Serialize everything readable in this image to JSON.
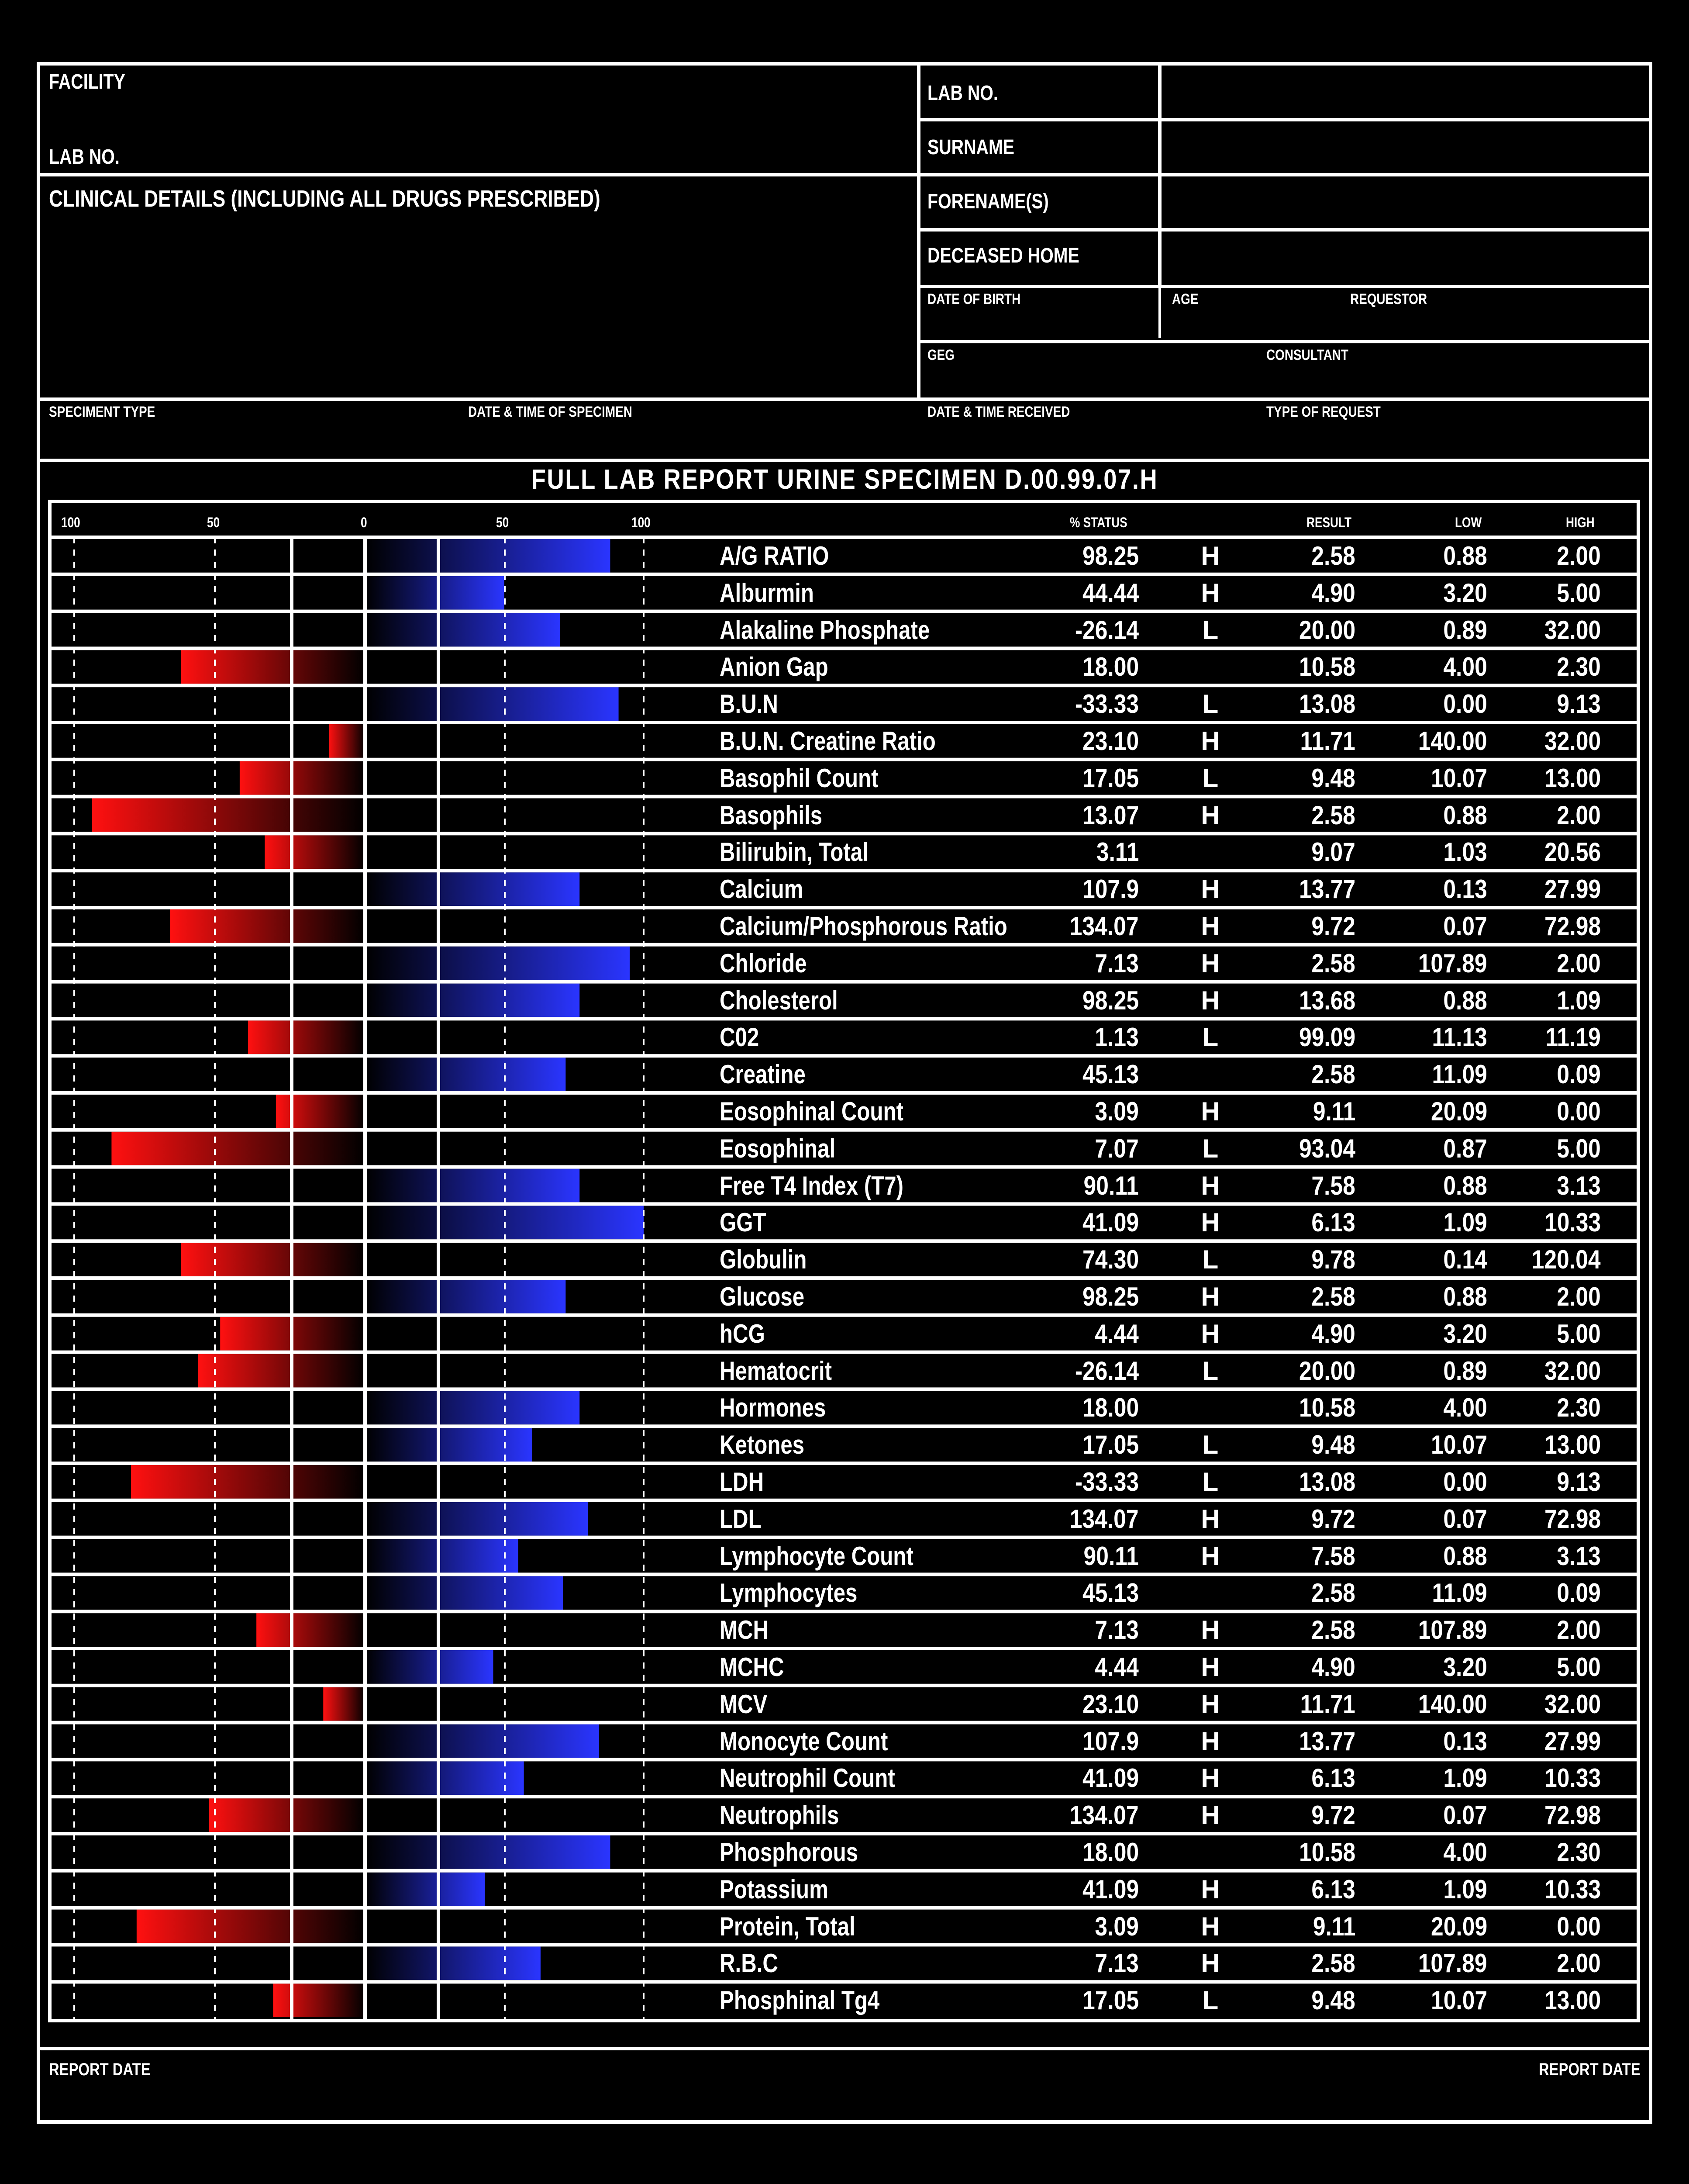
{
  "form": {
    "facility_label": "FACILITY",
    "lab_no_left_label": "LAB NO.",
    "clinical_details_label": "CLINICAL DETAILS (INCLUDING ALL DRUGS PRESCRIBED)",
    "lab_no_label": "LAB NO.",
    "surname_label": "SURNAME",
    "forenames_label": "FORENAME(S)",
    "deceased_home_label": "DECEASED HOME",
    "date_of_birth_label": "DATE OF BIRTH",
    "age_label": "AGE",
    "requestor_label": "REQUESTOR",
    "geg_label": "GEG",
    "consultant_label": "CONSULTANT",
    "specimen_type_label": "SPECIMENT TYPE",
    "date_time_specimen_label": "DATE & TIME OF SPECIMEN",
    "date_time_received_label": "DATE & TIME RECEIVED",
    "type_of_request_label": "TYPE OF REQUEST"
  },
  "report": {
    "title": "FULL LAB REPORT URINE SPECIMEN D.00.99.07.H",
    "scale_labels": [
      "100",
      "50",
      "0",
      "50",
      "100"
    ],
    "col_status": "% STATUS",
    "col_result": "RESULT",
    "col_low": "LOW",
    "col_high": "HIGH",
    "colors": {
      "high_bar": "#2a35ff",
      "low_bar": "#ff1010",
      "background": "#000000",
      "lines": "#ffffff"
    }
  },
  "footer": {
    "report_date_left": "REPORT DATE",
    "report_date_right": "REPORT DATE"
  },
  "rows": [
    {
      "name": "A/G RATIO",
      "pct": "98.25",
      "flag": "H",
      "result": "2.58",
      "low": "0.88",
      "high": "2.00",
      "bar_side": "right",
      "bar_level": 88
    },
    {
      "name": "Alburmin",
      "pct": "44.44",
      "flag": "H",
      "result": "4.90",
      "low": "3.20",
      "high": "5.00",
      "bar_side": "right",
      "bar_level": 50
    },
    {
      "name": "Alakaline Phosphate",
      "pct": "-26.14",
      "flag": "L",
      "result": "20.00",
      "low": "0.89",
      "high": "32.00",
      "bar_side": "right",
      "bar_level": 70
    },
    {
      "name": "Anion Gap",
      "pct": "18.00",
      "flag": "",
      "result": "10.58",
      "low": "4.00",
      "high": "2.30",
      "bar_side": "left",
      "bar_level": 66
    },
    {
      "name": "B.U.N",
      "pct": "-33.33",
      "flag": "L",
      "result": "13.08",
      "low": "0.00",
      "high": "9.13",
      "bar_side": "right",
      "bar_level": 91
    },
    {
      "name": "B.U.N. Creatine Ratio",
      "pct": "23.10",
      "flag": "H",
      "result": "11.71",
      "low": "140.00",
      "high": "32.00",
      "bar_side": "left",
      "bar_level": 13
    },
    {
      "name": "Basophil Count",
      "pct": "17.05",
      "flag": "L",
      "result": "9.48",
      "low": "10.07",
      "high": "13.00",
      "bar_side": "left",
      "bar_level": 45
    },
    {
      "name": "Basophils",
      "pct": "13.07",
      "flag": "H",
      "result": "2.58",
      "low": "0.88",
      "high": "2.00",
      "bar_side": "left",
      "bar_level": 98
    },
    {
      "name": "Bilirubin, Total",
      "pct": "3.11",
      "flag": "",
      "result": "9.07",
      "low": "1.03",
      "high": "20.56",
      "bar_side": "left",
      "bar_level": 36
    },
    {
      "name": "Calcium",
      "pct": "107.9",
      "flag": "H",
      "result": "13.77",
      "low": "0.13",
      "high": "27.99",
      "bar_side": "right",
      "bar_level": 77
    },
    {
      "name": "Calcium/Phosphorous Ratio",
      "pct": "134.07",
      "flag": "H",
      "result": "9.72",
      "low": "0.07",
      "high": "72.98",
      "bar_side": "left",
      "bar_level": 70
    },
    {
      "name": "Chloride",
      "pct": "7.13",
      "flag": "H",
      "result": "2.58",
      "low": "107.89",
      "high": "2.00",
      "bar_side": "right",
      "bar_level": 95
    },
    {
      "name": "Cholesterol",
      "pct": "98.25",
      "flag": "H",
      "result": "13.68",
      "low": "0.88",
      "high": "1.09",
      "bar_side": "right",
      "bar_level": 77
    },
    {
      "name": "C02",
      "pct": "1.13",
      "flag": "L",
      "result": "99.09",
      "low": "11.13",
      "high": "11.19",
      "bar_side": "left",
      "bar_level": 42
    },
    {
      "name": "Creatine",
      "pct": "45.13",
      "flag": "",
      "result": "2.58",
      "low": "11.09",
      "high": "0.09",
      "bar_side": "right",
      "bar_level": 72
    },
    {
      "name": "Eosophinal Count",
      "pct": "3.09",
      "flag": "H",
      "result": "9.11",
      "low": "20.09",
      "high": "0.00",
      "bar_side": "left",
      "bar_level": 32
    },
    {
      "name": "Eosophinal",
      "pct": "7.07",
      "flag": "L",
      "result": "93.04",
      "low": "0.87",
      "high": "5.00",
      "bar_side": "left",
      "bar_level": 91
    },
    {
      "name": "Free T4 Index (T7)",
      "pct": "90.11",
      "flag": "H",
      "result": "7.58",
      "low": "0.88",
      "high": "3.13",
      "bar_side": "right",
      "bar_level": 77
    },
    {
      "name": "GGT",
      "pct": "41.09",
      "flag": "H",
      "result": "6.13",
      "low": "1.09",
      "high": "10.33",
      "bar_side": "right",
      "bar_level": 100
    },
    {
      "name": "Globulin",
      "pct": "74.30",
      "flag": "L",
      "result": "9.78",
      "low": "0.14",
      "high": "120.04",
      "bar_side": "left",
      "bar_level": 66
    },
    {
      "name": "Glucose",
      "pct": "98.25",
      "flag": "H",
      "result": "2.58",
      "low": "0.88",
      "high": "2.00",
      "bar_side": "right",
      "bar_level": 72
    },
    {
      "name": "hCG",
      "pct": "4.44",
      "flag": "H",
      "result": "4.90",
      "low": "3.20",
      "high": "5.00",
      "bar_side": "left",
      "bar_level": 52
    },
    {
      "name": "Hematocrit",
      "pct": "-26.14",
      "flag": "L",
      "result": "20.00",
      "low": "0.89",
      "high": "32.00",
      "bar_side": "left",
      "bar_level": 60
    },
    {
      "name": "Hormones",
      "pct": "18.00",
      "flag": "",
      "result": "10.58",
      "low": "4.00",
      "high": "2.30",
      "bar_side": "right",
      "bar_level": 77
    },
    {
      "name": "Ketones",
      "pct": "17.05",
      "flag": "L",
      "result": "9.48",
      "low": "10.07",
      "high": "13.00",
      "bar_side": "right",
      "bar_level": 60
    },
    {
      "name": "LDH",
      "pct": "-33.33",
      "flag": "L",
      "result": "13.08",
      "low": "0.00",
      "high": "9.13",
      "bar_side": "left",
      "bar_level": 84
    },
    {
      "name": "LDL",
      "pct": "134.07",
      "flag": "H",
      "result": "9.72",
      "low": "0.07",
      "high": "72.98",
      "bar_side": "right",
      "bar_level": 80
    },
    {
      "name": "Lymphocyte Count",
      "pct": "90.11",
      "flag": "H",
      "result": "7.58",
      "low": "0.88",
      "high": "3.13",
      "bar_side": "right",
      "bar_level": 55
    },
    {
      "name": "Lymphocytes",
      "pct": "45.13",
      "flag": "",
      "result": "2.58",
      "low": "11.09",
      "high": "0.09",
      "bar_side": "right",
      "bar_level": 71
    },
    {
      "name": "MCH",
      "pct": "7.13",
      "flag": "H",
      "result": "2.58",
      "low": "107.89",
      "high": "2.00",
      "bar_side": "left",
      "bar_level": 39
    },
    {
      "name": "MCHC",
      "pct": "4.44",
      "flag": "H",
      "result": "4.90",
      "low": "3.20",
      "high": "5.00",
      "bar_side": "right",
      "bar_level": 46
    },
    {
      "name": "MCV",
      "pct": "23.10",
      "flag": "H",
      "result": "11.71",
      "low": "140.00",
      "high": "32.00",
      "bar_side": "left",
      "bar_level": 15
    },
    {
      "name": "Monocyte Count",
      "pct": "107.9",
      "flag": "H",
      "result": "13.77",
      "low": "0.13",
      "high": "27.99",
      "bar_side": "right",
      "bar_level": 84
    },
    {
      "name": "Neutrophil Count",
      "pct": "41.09",
      "flag": "H",
      "result": "6.13",
      "low": "1.09",
      "high": "10.33",
      "bar_side": "right",
      "bar_level": 57
    },
    {
      "name": "Neutrophils",
      "pct": "134.07",
      "flag": "H",
      "result": "9.72",
      "low": "0.07",
      "high": "72.98",
      "bar_side": "left",
      "bar_level": 56
    },
    {
      "name": "Phosphorous",
      "pct": "18.00",
      "flag": "",
      "result": "10.58",
      "low": "4.00",
      "high": "2.30",
      "bar_side": "right",
      "bar_level": 88
    },
    {
      "name": "Potassium",
      "pct": "41.09",
      "flag": "H",
      "result": "6.13",
      "low": "1.09",
      "high": "10.33",
      "bar_side": "right",
      "bar_level": 43
    },
    {
      "name": "Protein, Total",
      "pct": "3.09",
      "flag": "H",
      "result": "9.11",
      "low": "20.09",
      "high": "0.00",
      "bar_side": "left",
      "bar_level": 82
    },
    {
      "name": "R.B.C",
      "pct": "7.13",
      "flag": "H",
      "result": "2.58",
      "low": "107.89",
      "high": "2.00",
      "bar_side": "right",
      "bar_level": 63
    },
    {
      "name": "Phosphinal Tg4",
      "pct": "17.05",
      "flag": "L",
      "result": "9.48",
      "low": "10.07",
      "high": "13.00",
      "bar_side": "left",
      "bar_level": 33
    }
  ]
}
